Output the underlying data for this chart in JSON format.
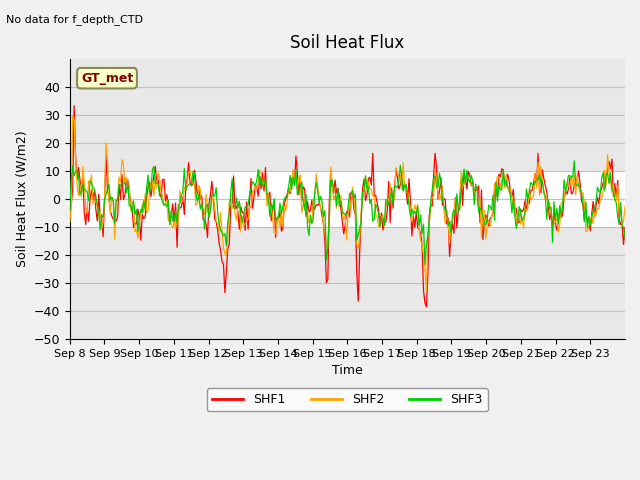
{
  "title": "Soil Heat Flux",
  "subtitle": "No data for f_depth_CTD",
  "ylabel": "Soil Heat Flux (W/m2)",
  "xlabel": "Time",
  "ylim": [
    -50,
    50
  ],
  "yticks": [
    -50,
    -40,
    -30,
    -20,
    -10,
    0,
    10,
    20,
    30,
    40
  ],
  "xtick_labels": [
    "Sep 8",
    "Sep 9",
    "Sep 10",
    "Sep 11",
    "Sep 12",
    "Sep 13",
    "Sep 14",
    "Sep 15",
    "Sep 16",
    "Sep 17",
    "Sep 18",
    "Sep 19",
    "Sep 20",
    "Sep 21",
    "Sep 22",
    "Sep 23"
  ],
  "legend_labels": [
    "SHF1",
    "SHF2",
    "SHF3"
  ],
  "colors": {
    "SHF1": "#ff0000",
    "SHF2": "#ffa500",
    "SHF3": "#00cc00"
  },
  "background_color": "#e8e8e8",
  "plot_bg_color": "#e8e8e8",
  "band_color": "#ffffff",
  "gt_met_label": "GT_met",
  "gt_met_box_color": "#ffffcc",
  "gt_met_text_color": "#800000"
}
